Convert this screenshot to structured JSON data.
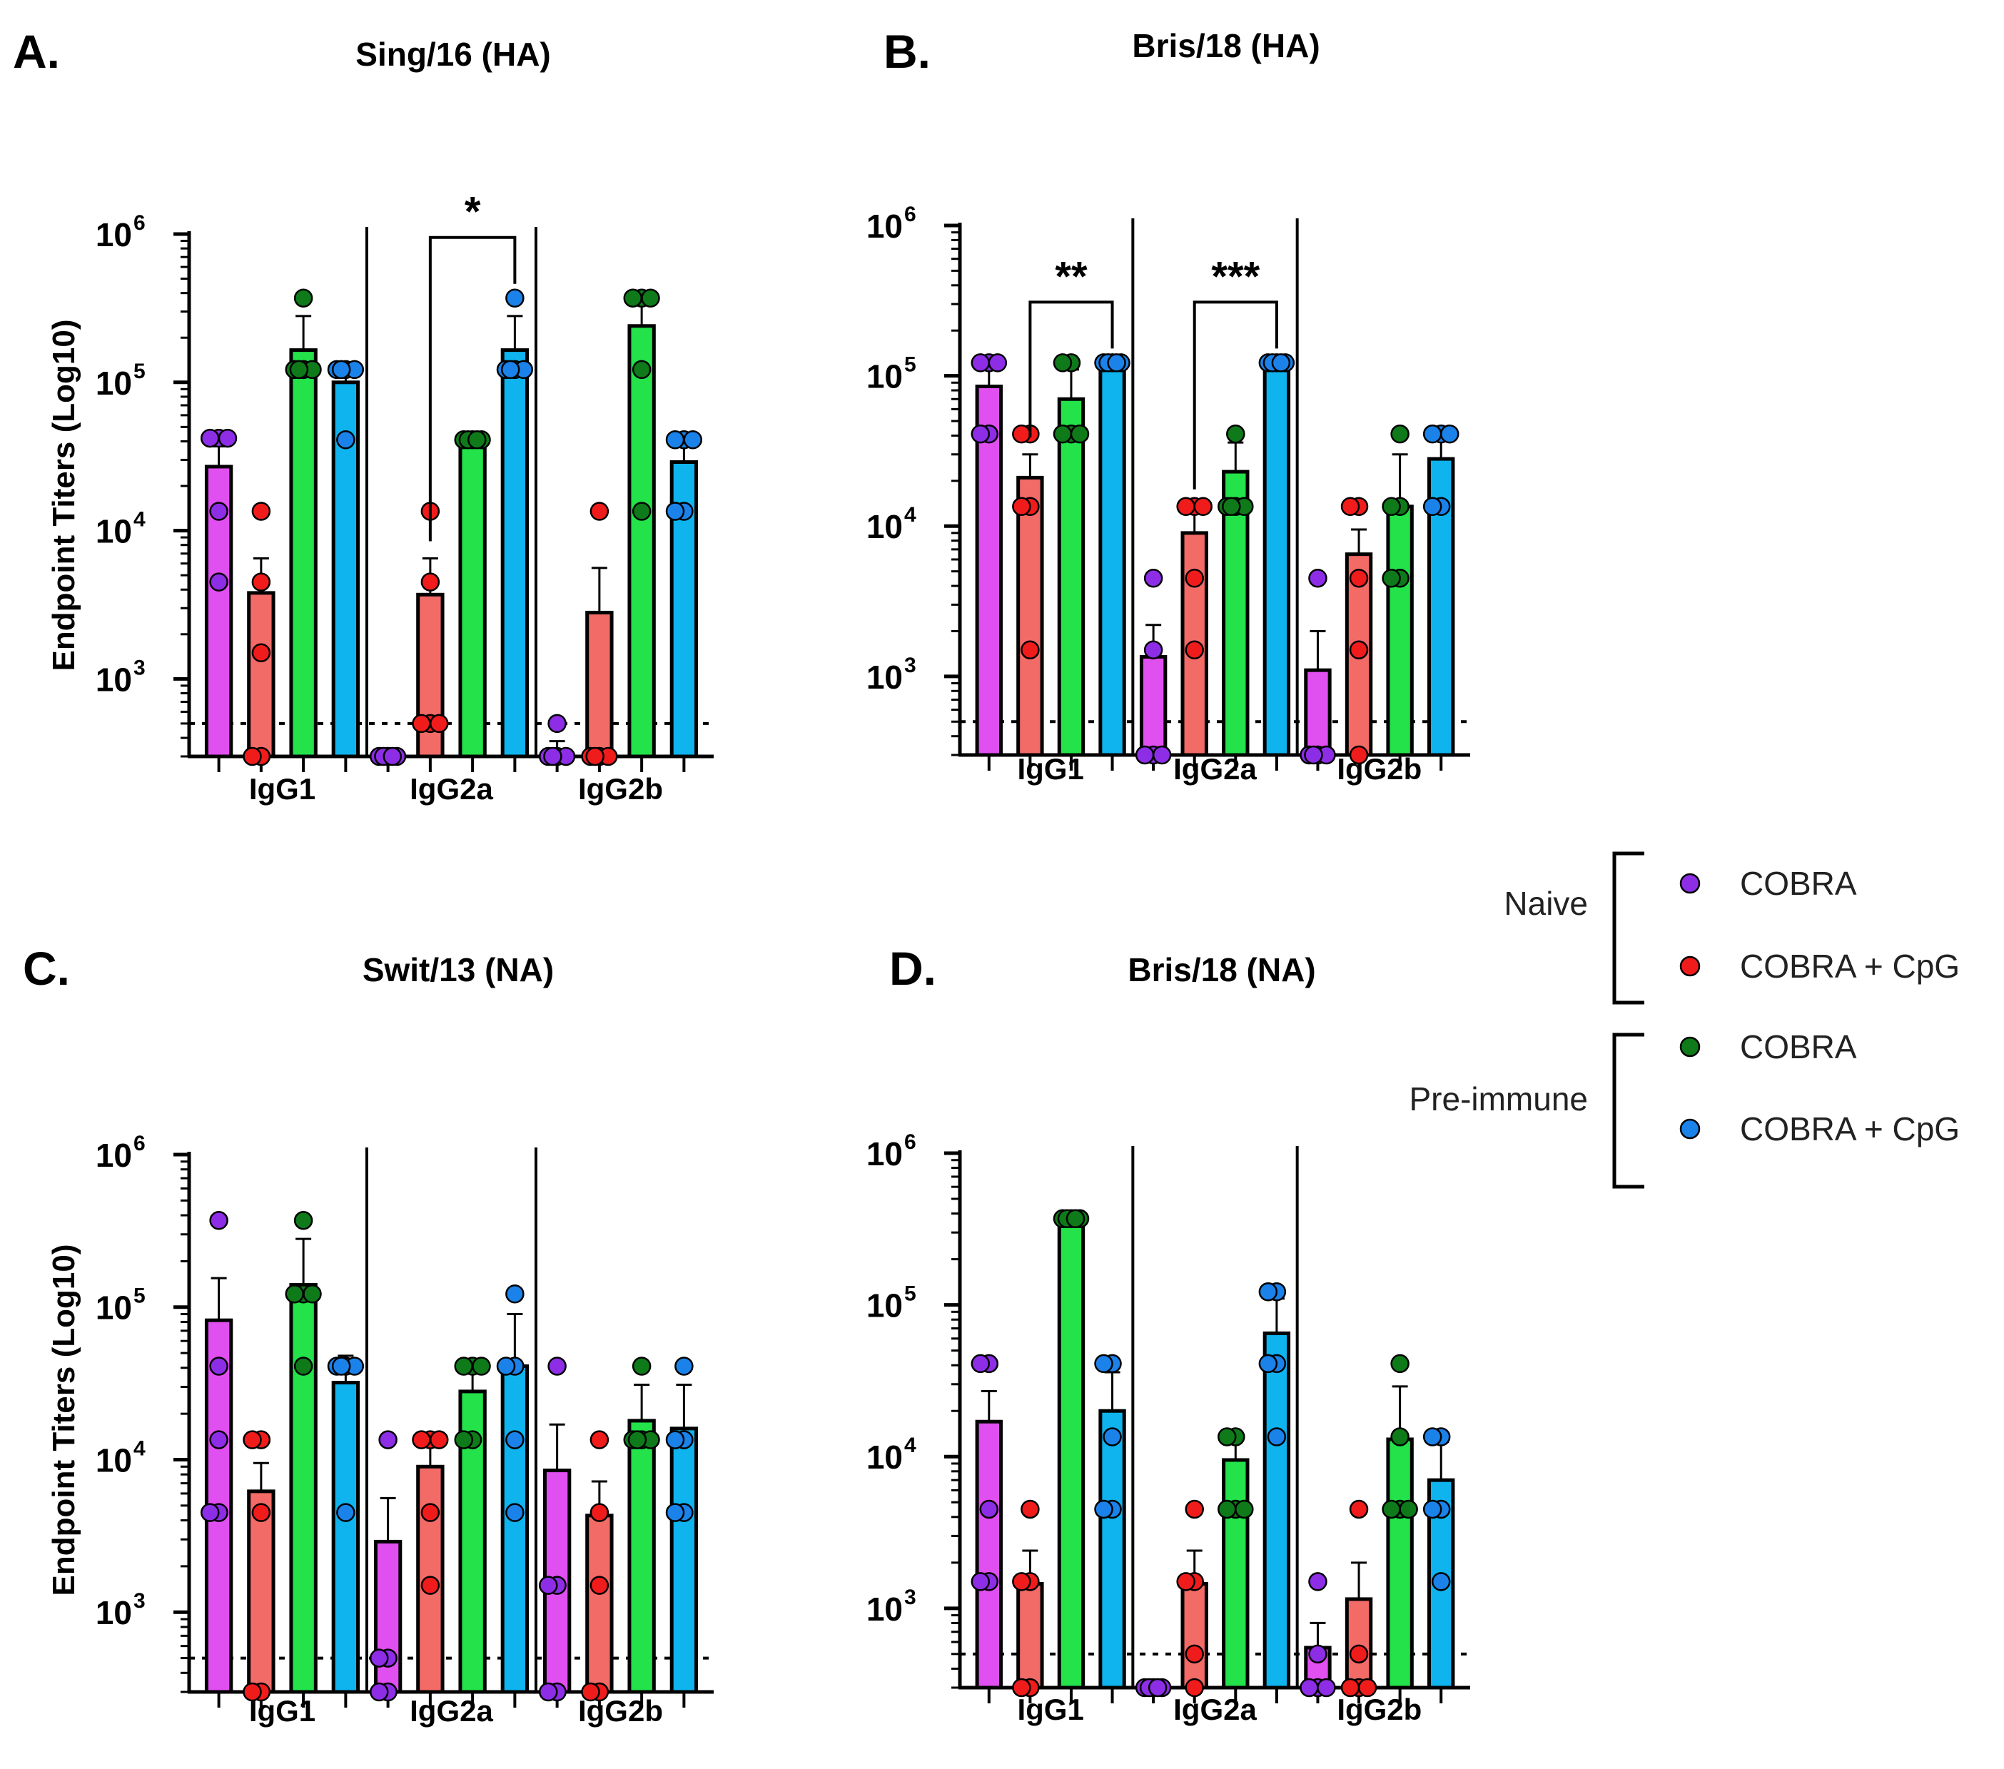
{
  "chart_data": [
    {
      "panel": "A.",
      "title": "Sing/16 (HA)",
      "type": "bar",
      "yscale": "log",
      "ylabel": "Endpoint Titers (Log10)",
      "ylim": [
        300,
        1000000
      ],
      "yticks": [
        {
          "base": "10",
          "exp": "3",
          "value": 1000
        },
        {
          "base": "10",
          "exp": "4",
          "value": 10000
        },
        {
          "base": "10",
          "exp": "5",
          "value": 100000
        },
        {
          "base": "10",
          "exp": "6",
          "value": 1000000
        }
      ],
      "limit_of_detection": 500,
      "categories": [
        "IgG1",
        "IgG2a",
        "IgG2b"
      ],
      "series": [
        {
          "name": "Naive COBRA",
          "values": [
            27000,
            300,
            300
          ],
          "err": [
            37000,
            300,
            380
          ],
          "points": [
            [
              42000,
              42000,
              42000,
              13500,
              4500
            ],
            [
              300,
              300,
              300,
              300,
              300
            ],
            [
              500,
              300,
              300,
              300,
              300
            ]
          ]
        },
        {
          "name": "Naive COBRA + CpG",
          "values": [
            3800,
            3700,
            2800
          ],
          "err": [
            6500,
            6500,
            5600
          ],
          "points": [
            [
              13500,
              4500,
              1500,
              300,
              300
            ],
            [
              13500,
              4500,
              500,
              500,
              500
            ],
            [
              13500,
              300,
              300,
              300,
              300
            ]
          ]
        },
        {
          "name": "Pre-immune COBRA",
          "values": [
            165000,
            41000,
            240000
          ],
          "err": [
            280000,
            41000,
            370000
          ],
          "points": [
            [
              370000,
              122000,
              122000,
              122000,
              122000
            ],
            [
              41000,
              41000,
              41000,
              41000,
              41000
            ],
            [
              370000,
              370000,
              370000,
              122000,
              13500
            ]
          ]
        },
        {
          "name": "Pre-immune COBRA + CpG",
          "values": [
            100000,
            165000,
            29000
          ],
          "err": [
            122000,
            280000,
            41000
          ],
          "points": [
            [
              122000,
              122000,
              122000,
              122000,
              41000
            ],
            [
              370000,
              122000,
              122000,
              122000,
              122000
            ],
            [
              41000,
              41000,
              41000,
              13500,
              13500
            ]
          ]
        }
      ],
      "significance": [
        {
          "group": 1,
          "from": 1,
          "to": 3,
          "label": "*"
        }
      ]
    },
    {
      "panel": "B.",
      "title": "Bris/18 (HA)",
      "type": "bar",
      "yscale": "log",
      "ylabel": "",
      "ylim": [
        300,
        1000000
      ],
      "yticks": [
        {
          "base": "10",
          "exp": "3",
          "value": 1000
        },
        {
          "base": "10",
          "exp": "4",
          "value": 10000
        },
        {
          "base": "10",
          "exp": "5",
          "value": 100000
        },
        {
          "base": "10",
          "exp": "6",
          "value": 1000000
        }
      ],
      "limit_of_detection": 500,
      "categories": [
        "IgG1",
        "IgG2a",
        "IgG2b"
      ],
      "series": [
        {
          "name": "Naive COBRA",
          "values": [
            85000,
            1350,
            1100
          ],
          "err": [
            110000,
            2200,
            2000
          ],
          "points": [
            [
              122000,
              122000,
              122000,
              41000,
              41000
            ],
            [
              4500,
              1500,
              300,
              300,
              300
            ],
            [
              4500,
              300,
              300,
              300,
              300
            ]
          ]
        },
        {
          "name": "Naive COBRA + CpG",
          "values": [
            21000,
            9000,
            6500
          ],
          "err": [
            30000,
            13500,
            9500
          ],
          "points": [
            [
              41000,
              41000,
              13500,
              13500,
              1500
            ],
            [
              13500,
              13500,
              13500,
              4500,
              1500
            ],
            [
              13500,
              13500,
              4500,
              1500,
              300
            ]
          ]
        },
        {
          "name": "Pre-immune COBRA",
          "values": [
            70000,
            23000,
            13500
          ],
          "err": [
            110000,
            36000,
            30000
          ],
          "points": [
            [
              122000,
              122000,
              41000,
              41000,
              41000
            ],
            [
              41000,
              13500,
              13500,
              13500,
              13500
            ],
            [
              41000,
              13500,
              13500,
              4500,
              4500
            ]
          ]
        },
        {
          "name": "Pre-immune COBRA + CpG",
          "values": [
            122000,
            122000,
            28000
          ],
          "err": [
            122000,
            122000,
            41000
          ],
          "points": [
            [
              122000,
              122000,
              122000,
              122000,
              122000
            ],
            [
              122000,
              122000,
              122000,
              122000,
              122000
            ],
            [
              41000,
              41000,
              41000,
              13500,
              13500
            ]
          ]
        }
      ],
      "significance": [
        {
          "group": 0,
          "from": 1,
          "to": 3,
          "label": "**"
        },
        {
          "group": 1,
          "from": 1,
          "to": 3,
          "label": "***"
        }
      ]
    },
    {
      "panel": "C.",
      "title": "Swit/13 (NA)",
      "type": "bar",
      "yscale": "log",
      "ylabel": "Endpoint Titers (Log10)",
      "ylim": [
        300,
        1000000
      ],
      "yticks": [
        {
          "base": "10",
          "exp": "3",
          "value": 1000
        },
        {
          "base": "10",
          "exp": "4",
          "value": 10000
        },
        {
          "base": "10",
          "exp": "5",
          "value": 100000
        },
        {
          "base": "10",
          "exp": "6",
          "value": 1000000
        }
      ],
      "limit_of_detection": 500,
      "categories": [
        "IgG1",
        "IgG2a",
        "IgG2b"
      ],
      "series": [
        {
          "name": "Naive COBRA",
          "values": [
            82000,
            2900,
            8500
          ],
          "err": [
            155000,
            5600,
            17000
          ],
          "points": [
            [
              370000,
              41000,
              13500,
              4500,
              4500
            ],
            [
              13500,
              500,
              500,
              300,
              300
            ],
            [
              41000,
              1500,
              1500,
              300,
              300
            ]
          ]
        },
        {
          "name": "Naive COBRA + CpG",
          "values": [
            6200,
            9000,
            4300
          ],
          "err": [
            9500,
            13500,
            7200
          ],
          "points": [
            [
              13500,
              13500,
              4500,
              300,
              300
            ],
            [
              13500,
              13500,
              13500,
              4500,
              1500
            ],
            [
              13500,
              4500,
              1500,
              300,
              300
            ]
          ]
        },
        {
          "name": "Pre-immune COBRA",
          "values": [
            140000,
            28000,
            18000
          ],
          "err": [
            280000,
            41000,
            31000
          ],
          "points": [
            [
              370000,
              122000,
              122000,
              122000,
              41000
            ],
            [
              41000,
              41000,
              41000,
              13500,
              13500
            ],
            [
              41000,
              13500,
              13500,
              13500,
              13500
            ]
          ]
        },
        {
          "name": "Pre-immune COBRA + CpG",
          "values": [
            32000,
            41000,
            16000
          ],
          "err": [
            48000,
            90000,
            31000
          ],
          "points": [
            [
              41000,
              41000,
              41000,
              41000,
              4500
            ],
            [
              122000,
              41000,
              41000,
              13500,
              4500
            ],
            [
              41000,
              13500,
              13500,
              4500,
              4500
            ]
          ]
        }
      ],
      "significance": []
    },
    {
      "panel": "D.",
      "title": "Bris/18 (NA)",
      "type": "bar",
      "yscale": "log",
      "ylabel": "",
      "ylim": [
        300,
        1000000
      ],
      "yticks": [
        {
          "base": "10",
          "exp": "3",
          "value": 1000
        },
        {
          "base": "10",
          "exp": "4",
          "value": 10000
        },
        {
          "base": "10",
          "exp": "5",
          "value": 100000
        },
        {
          "base": "10",
          "exp": "6",
          "value": 1000000
        }
      ],
      "limit_of_detection": 500,
      "categories": [
        "IgG1",
        "IgG2a",
        "IgG2b"
      ],
      "series": [
        {
          "name": "Naive COBRA",
          "values": [
            17000,
            300,
            550
          ],
          "err": [
            27000,
            300,
            800
          ],
          "points": [
            [
              41000,
              41000,
              4500,
              1500,
              1500
            ],
            [
              300,
              300,
              300,
              300,
              300
            ],
            [
              1500,
              500,
              300,
              300,
              300
            ]
          ]
        },
        {
          "name": "Naive COBRA + CpG",
          "values": [
            1450,
            1450,
            1150
          ],
          "err": [
            2400,
            2400,
            2000
          ],
          "points": [
            [
              4500,
              1500,
              1500,
              300,
              300
            ],
            [
              4500,
              1500,
              1500,
              500,
              300
            ],
            [
              4500,
              500,
              300,
              300,
              300
            ]
          ]
        },
        {
          "name": "Pre-immune COBRA",
          "values": [
            370000,
            9500,
            13000
          ],
          "err": [
            370000,
            13500,
            29000
          ],
          "points": [
            [
              370000,
              370000,
              370000,
              370000,
              370000
            ],
            [
              13500,
              13500,
              4500,
              4500,
              4500
            ],
            [
              41000,
              13500,
              4500,
              4500,
              4500
            ]
          ]
        },
        {
          "name": "Pre-immune COBRA + CpG",
          "values": [
            20000,
            65000,
            7000
          ],
          "err": [
            36000,
            110000,
            12500
          ],
          "points": [
            [
              41000,
              41000,
              13500,
              4500,
              4500
            ],
            [
              122000,
              122000,
              41000,
              41000,
              13500
            ],
            [
              13500,
              13500,
              4500,
              4500,
              1500
            ]
          ]
        }
      ],
      "significance": []
    }
  ],
  "legend": {
    "groups": [
      {
        "label": "Naive",
        "entries": [
          {
            "label": "COBRA",
            "color": "#8d2ee6"
          },
          {
            "label": "COBRA + CpG",
            "color": "#f01c1c"
          }
        ]
      },
      {
        "label": "Pre-immune",
        "entries": [
          {
            "label": "COBRA",
            "color": "#0f7a1a"
          },
          {
            "label": "COBRA + CpG",
            "color": "#1b82ea"
          }
        ]
      }
    ]
  },
  "colors": {
    "bar_fill": [
      "#e04ff0",
      "#f26b67",
      "#23e24a",
      "#0fb3ee"
    ],
    "point_fill": [
      "#8d2ee6",
      "#f01c1c",
      "#0f7a1a",
      "#1b82ea"
    ]
  }
}
